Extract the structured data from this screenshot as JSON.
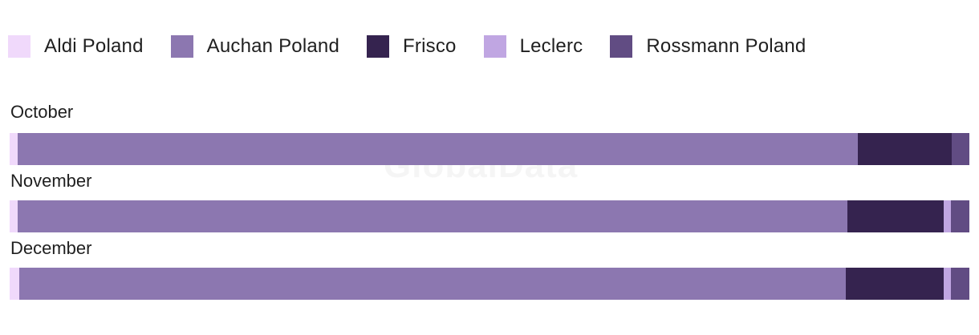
{
  "chart_data": {
    "type": "bar",
    "orientation": "horizontal",
    "stacked": true,
    "normalized": true,
    "categories": [
      "October",
      "November",
      "December"
    ],
    "series": [
      {
        "name": "Aldi Poland",
        "color": "#f0d9fb",
        "values": [
          0.8,
          0.8,
          1.0
        ]
      },
      {
        "name": "Auchan Poland",
        "color": "#8c77b0",
        "values": [
          87.6,
          86.5,
          86.1
        ]
      },
      {
        "name": "Frisco",
        "color": "#35234f",
        "values": [
          9.8,
          10.0,
          10.2
        ]
      },
      {
        "name": "Leclerc",
        "color": "#c0a6e2",
        "values": [
          0.0,
          0.8,
          0.8
        ]
      },
      {
        "name": "Rossmann Poland",
        "color": "#614c83",
        "values": [
          1.8,
          1.9,
          1.9
        ]
      }
    ],
    "xlim": [
      0,
      100
    ],
    "legend_position": "top-left",
    "grid": false
  },
  "watermark": "GlobalData"
}
